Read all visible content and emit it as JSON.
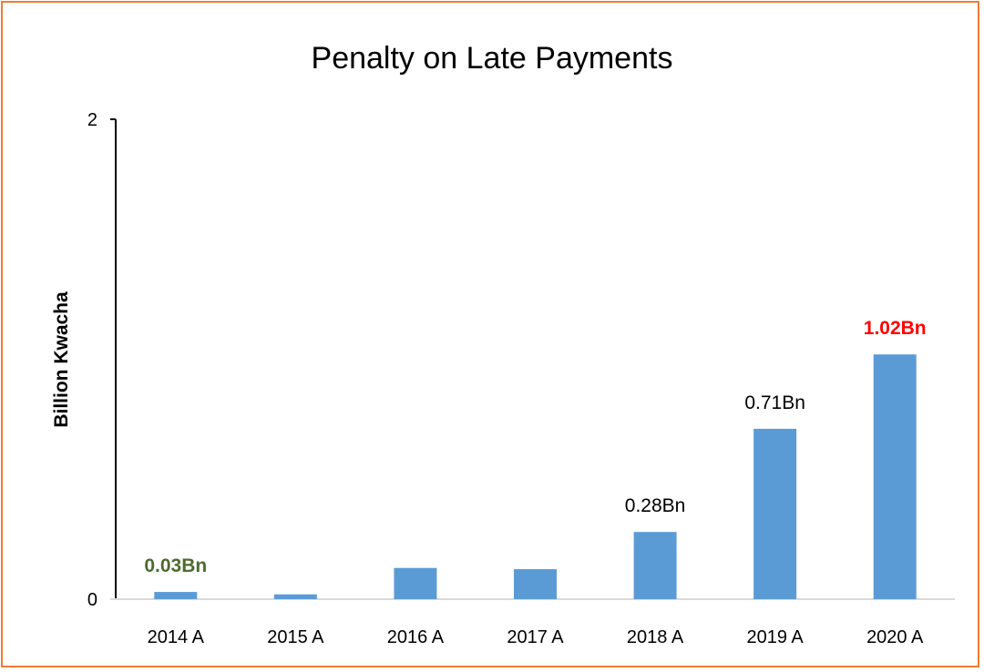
{
  "chart_data": {
    "type": "bar",
    "title": "Penalty on Late Payments",
    "xlabel": "",
    "ylabel": "Billion Kwacha",
    "ylim": [
      0,
      2
    ],
    "yticks": [
      "0",
      "2"
    ],
    "categories": [
      "2014 A",
      "2015 A",
      "2016 A",
      "2017 A",
      "2018 A",
      "2019 A",
      "2020 A"
    ],
    "values": [
      0.03,
      0.02,
      0.13,
      0.125,
      0.28,
      0.71,
      1.02
    ],
    "data_labels": [
      {
        "index": 0,
        "text": "0.03Bn",
        "color": "#4E6B2E",
        "bold": true
      },
      {
        "index": 4,
        "text": "0.28Bn",
        "color": "#000000",
        "bold": false
      },
      {
        "index": 5,
        "text": "0.71Bn",
        "color": "#000000",
        "bold": false
      },
      {
        "index": 6,
        "text": "1.02Bn",
        "color": "#FF0000",
        "bold": true
      }
    ],
    "bar_color": "#5B9BD5",
    "frame_color": "#ED7D31",
    "grid": false,
    "legend": "none"
  }
}
